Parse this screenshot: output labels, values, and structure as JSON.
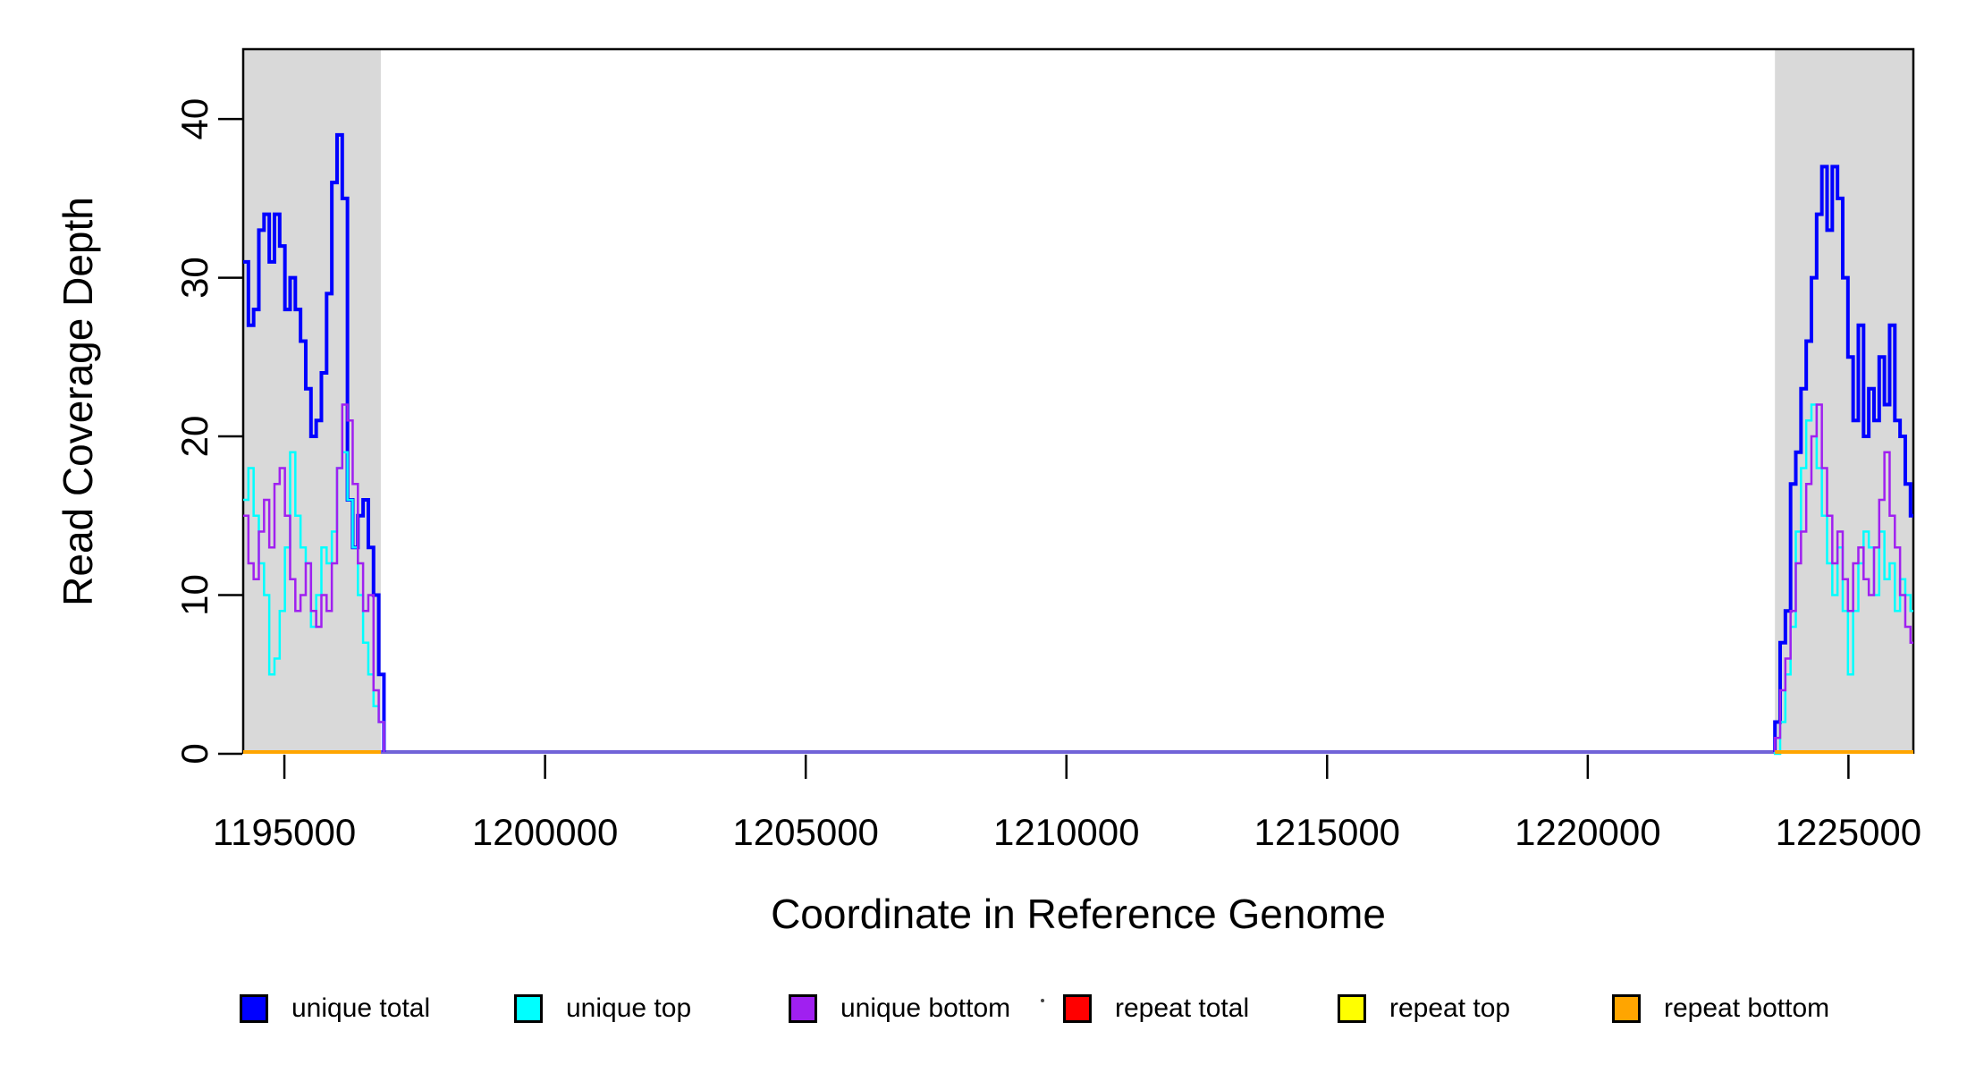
{
  "chart_data": {
    "type": "line",
    "subtype": "step-coverage",
    "title": "",
    "xlabel": "Coordinate in Reference Genome",
    "ylabel": "Read Coverage Depth",
    "x_ticks": [
      1195000,
      1200000,
      1205000,
      1210000,
      1215000,
      1220000,
      1225000
    ],
    "x_tick_labels": [
      "1195000",
      "1200000",
      "1205000",
      "1210000",
      "1215000",
      "1220000",
      "1225000"
    ],
    "y_ticks": [
      0,
      10,
      20,
      30,
      40
    ],
    "y_tick_labels": [
      "0",
      "10",
      "20",
      "30",
      "40"
    ],
    "x_range": [
      1194210,
      1226245
    ],
    "y_range": [
      0,
      44.4
    ],
    "grid": false,
    "legend_position": "bottom",
    "plot_bg": "#FFFFFF",
    "border_color": "#000000",
    "shaded_region_color": "#D9D9D9",
    "zero_overlap_line_color": "#7163D8",
    "bin_size": 100,
    "series_meta": [
      {
        "id": "unique_total",
        "label": "unique total",
        "color": "#0000FF"
      },
      {
        "id": "unique_top",
        "label": "unique top",
        "color": "#00FFFF"
      },
      {
        "id": "unique_bottom",
        "label": "unique bottom",
        "color": "#A020F0"
      },
      {
        "id": "repeat_total",
        "label": "repeat total",
        "color": "#FF0000"
      },
      {
        "id": "repeat_top",
        "label": "repeat top",
        "color": "#FFFF00"
      },
      {
        "id": "repeat_bottom",
        "label": "repeat bottom",
        "color": "#FFA500"
      }
    ],
    "shaded_regions": [
      {
        "start": 1194210,
        "end": 1196850
      },
      {
        "start": 1223590,
        "end": 1226245
      }
    ],
    "repeat_series_value": 0,
    "regions": [
      {
        "start": 1194210,
        "enter_from_zero": false,
        "exit_to_zero": true,
        "series": {
          "unique_total": [
            31,
            27,
            28,
            33,
            34,
            31,
            34,
            32,
            28,
            30,
            28,
            26,
            23,
            20,
            21,
            24,
            29,
            36,
            39,
            35,
            16,
            13,
            15,
            16,
            13,
            10,
            5
          ],
          "unique_top": [
            16,
            18,
            15,
            12,
            10,
            5,
            6,
            9,
            13,
            19,
            15,
            13,
            12,
            8,
            10,
            13,
            12,
            14,
            18,
            19,
            16,
            13,
            10,
            7,
            5,
            3,
            2
          ],
          "unique_bottom": [
            15,
            12,
            11,
            14,
            16,
            13,
            17,
            18,
            15,
            11,
            9,
            10,
            12,
            9,
            8,
            10,
            9,
            12,
            18,
            22,
            21,
            17,
            12,
            9,
            10,
            4,
            2
          ]
        }
      },
      {
        "start": 1223590,
        "enter_from_zero": true,
        "exit_to_zero": false,
        "series": {
          "unique_total": [
            2,
            7,
            9,
            17,
            19,
            23,
            26,
            30,
            34,
            37,
            33,
            37,
            35,
            30,
            25,
            21,
            27,
            20,
            23,
            21,
            25,
            22,
            27,
            21,
            20,
            17,
            15
          ],
          "unique_top": [
            0,
            2,
            5,
            8,
            14,
            18,
            21,
            22,
            18,
            15,
            12,
            10,
            13,
            9,
            5,
            9,
            12,
            14,
            13,
            10,
            14,
            11,
            12,
            9,
            11,
            10,
            9
          ],
          "unique_bottom": [
            1,
            4,
            6,
            9,
            12,
            14,
            17,
            20,
            22,
            18,
            15,
            12,
            14,
            11,
            9,
            12,
            13,
            11,
            10,
            13,
            16,
            19,
            15,
            13,
            10,
            8,
            7
          ]
        }
      }
    ]
  },
  "legend": {
    "note": "items mirror chart_data.series_meta"
  }
}
